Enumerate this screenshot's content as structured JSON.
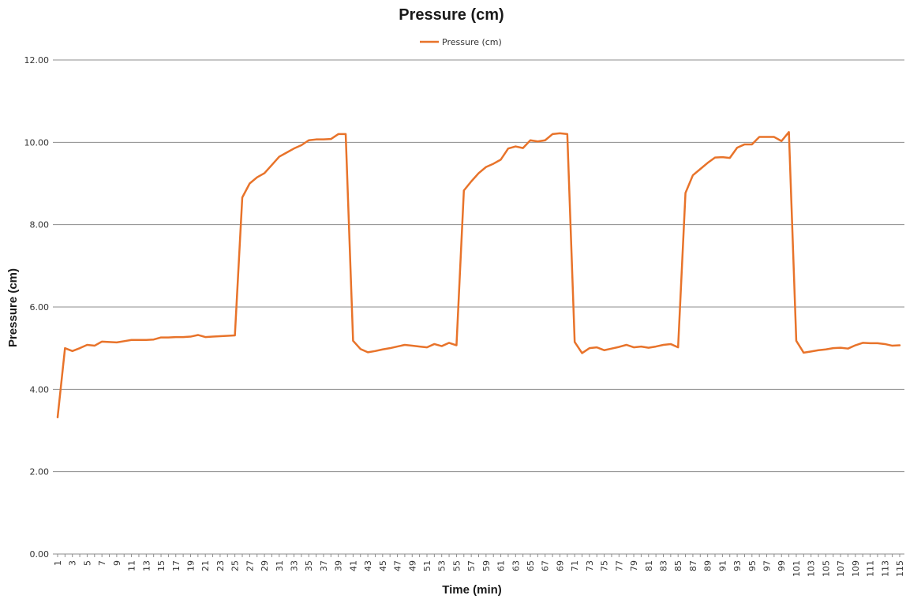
{
  "chart_data": {
    "type": "line",
    "title": "Pressure (cm)",
    "xlabel": "Time (min)",
    "ylabel": "Pressure (cm)",
    "ylim": [
      0,
      12
    ],
    "y_ticks": [
      "0.00",
      "2.00",
      "4.00",
      "6.00",
      "8.00",
      "10.00",
      "12.00"
    ],
    "x_tick_labels": [
      "1",
      "3",
      "5",
      "7",
      "9",
      "11",
      "13",
      "15",
      "17",
      "19",
      "21",
      "23",
      "25",
      "27",
      "29",
      "31",
      "33",
      "35",
      "37",
      "39",
      "41",
      "43",
      "45",
      "47",
      "49",
      "51",
      "53",
      "55",
      "57",
      "59",
      "61",
      "63",
      "65",
      "67",
      "69",
      "71",
      "73",
      "75",
      "77",
      "79",
      "81",
      "83",
      "85",
      "87",
      "89",
      "91",
      "93",
      "95",
      "97",
      "99",
      "101",
      "103",
      "105",
      "107",
      "109",
      "111",
      "113",
      "115"
    ],
    "grid": true,
    "legend_position": "top",
    "series_color": "#e8732a",
    "series": [
      {
        "name": "Pressure (cm)",
        "x": [
          1,
          2,
          3,
          4,
          5,
          6,
          7,
          8,
          9,
          10,
          11,
          12,
          13,
          14,
          15,
          16,
          17,
          18,
          19,
          20,
          21,
          22,
          23,
          24,
          25,
          26,
          27,
          28,
          29,
          30,
          31,
          32,
          33,
          34,
          35,
          36,
          37,
          38,
          39,
          40,
          41,
          42,
          43,
          44,
          45,
          46,
          47,
          48,
          49,
          50,
          51,
          52,
          53,
          54,
          55,
          56,
          57,
          58,
          59,
          60,
          61,
          62,
          63,
          64,
          65,
          66,
          67,
          68,
          69,
          70,
          71,
          72,
          73,
          74,
          75,
          76,
          77,
          78,
          79,
          80,
          81,
          82,
          83,
          84,
          85,
          86,
          87,
          88,
          89,
          90,
          91,
          92,
          93,
          94,
          95,
          96,
          97,
          98,
          99,
          100,
          101,
          102,
          103,
          104,
          105,
          106,
          107,
          108,
          109,
          110,
          111,
          112,
          113,
          114,
          115
        ],
        "values": [
          3.32,
          5.0,
          4.93,
          5.0,
          5.08,
          5.06,
          5.16,
          5.15,
          5.14,
          5.17,
          5.2,
          5.2,
          5.2,
          5.21,
          5.26,
          5.26,
          5.27,
          5.27,
          5.28,
          5.32,
          5.27,
          5.28,
          5.29,
          5.3,
          5.31,
          8.66,
          9.0,
          9.15,
          9.25,
          9.45,
          9.65,
          9.75,
          9.85,
          9.93,
          10.05,
          10.07,
          10.07,
          10.08,
          10.2,
          10.2,
          5.18,
          4.98,
          4.9,
          4.93,
          4.97,
          5.0,
          5.04,
          5.08,
          5.06,
          5.04,
          5.02,
          5.1,
          5.05,
          5.13,
          5.07,
          8.83,
          9.05,
          9.25,
          9.4,
          9.48,
          9.58,
          9.85,
          9.9,
          9.86,
          10.05,
          10.02,
          10.05,
          10.2,
          10.22,
          10.2,
          5.15,
          4.88,
          5.0,
          5.02,
          4.95,
          4.99,
          5.03,
          5.08,
          5.02,
          5.04,
          5.01,
          5.04,
          5.08,
          5.1,
          5.02,
          8.77,
          9.2,
          9.35,
          9.5,
          9.63,
          9.64,
          9.62,
          9.87,
          9.95,
          9.95,
          10.13,
          10.13,
          10.13,
          10.03,
          10.25,
          5.18,
          4.89,
          4.92,
          4.95,
          4.97,
          5.0,
          5.01,
          4.99,
          5.07,
          5.13,
          5.12,
          5.12,
          5.1,
          5.06,
          5.07
        ]
      }
    ]
  }
}
